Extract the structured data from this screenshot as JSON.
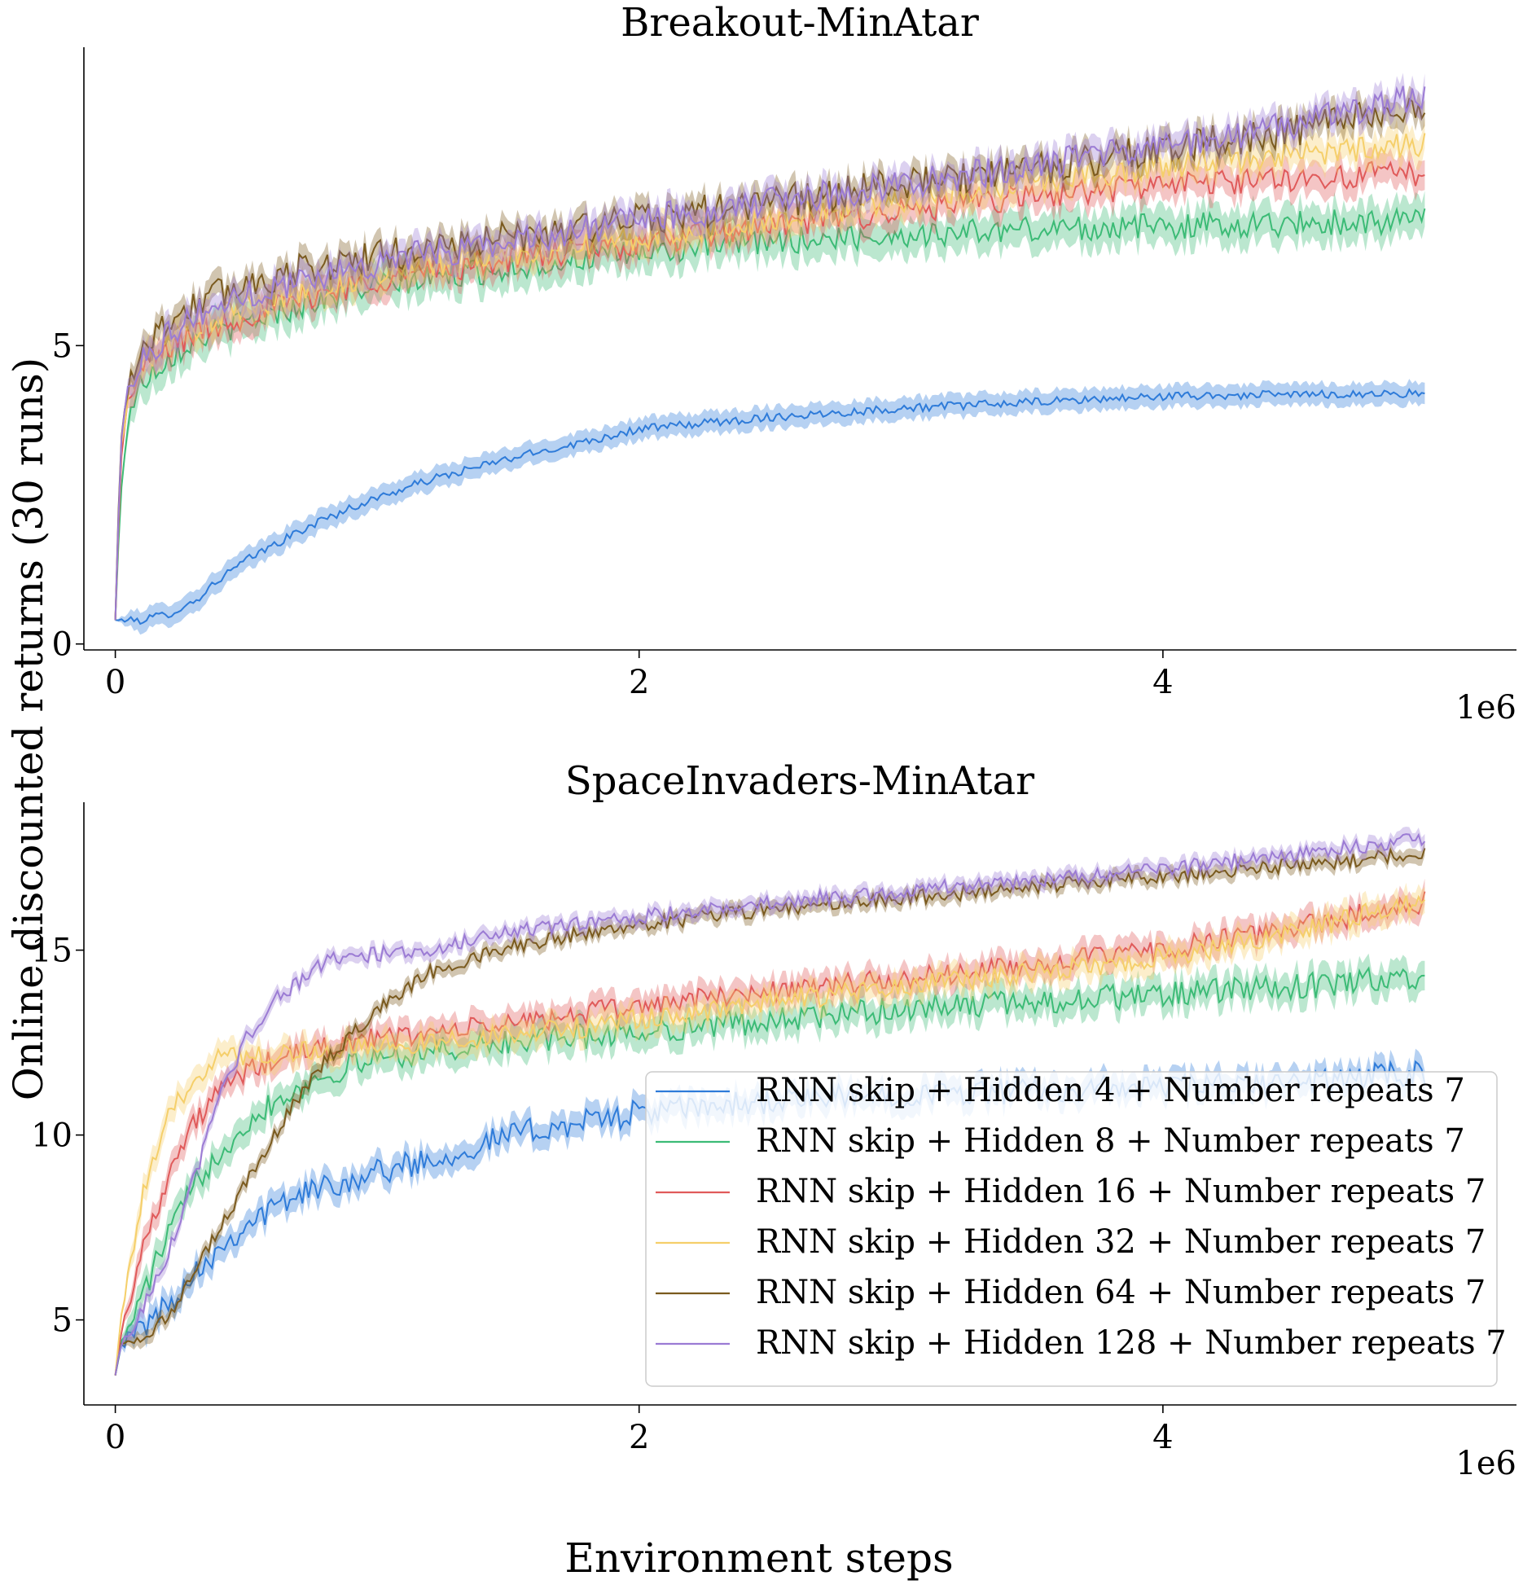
{
  "figure": {
    "ylabel": "Online discounted returns (30 runs)",
    "xlabel": "Environment steps"
  },
  "legend": {
    "placement": "lower-right of bottom panel",
    "entries": [
      {
        "label": "RNN skip + Hidden 4 + Number repeats 7",
        "color": "#2e7bd9"
      },
      {
        "label": "RNN skip + Hidden 8 + Number repeats 7",
        "color": "#3cbb76"
      },
      {
        "label": "RNN skip + Hidden 16 + Number repeats 7",
        "color": "#e05a5a"
      },
      {
        "label": "RNN skip + Hidden 32 + Number repeats 7",
        "color": "#f5cf6a"
      },
      {
        "label": "RNN skip + Hidden 64 + Number repeats 7",
        "color": "#7a5a1e"
      },
      {
        "label": "RNN skip + Hidden 128 + Number repeats 7",
        "color": "#9b7bd4"
      }
    ]
  },
  "chart_data": [
    {
      "type": "line",
      "title": "Breakout-MinAtar",
      "xlabel": "Environment steps",
      "ylabel": "Online discounted returns (30 runs)",
      "x_offset_label": "1e6",
      "x_unit_scale": 1000000,
      "xlim": [
        -0.12,
        5.35
      ],
      "ylim": [
        -0.1,
        10.0
      ],
      "xticks": [
        0,
        2,
        4
      ],
      "yticks": [
        0,
        5
      ],
      "grid": false,
      "shaded_band": true,
      "series": [
        {
          "name": "RNN skip + Hidden 4 + Number repeats 7",
          "color": "#2e7bd9",
          "x": [
            0,
            0.1,
            0.2,
            0.3,
            0.4,
            0.5,
            0.6,
            0.8,
            1.0,
            1.2,
            1.5,
            1.8,
            2.0,
            2.5,
            3.0,
            3.5,
            4.0,
            4.5,
            5.0
          ],
          "y": [
            0.4,
            0.4,
            0.5,
            0.7,
            1.1,
            1.4,
            1.65,
            2.1,
            2.45,
            2.75,
            3.1,
            3.4,
            3.6,
            3.8,
            3.95,
            4.05,
            4.15,
            4.18,
            4.2
          ],
          "band": 0.18,
          "noise": 0.07
        },
        {
          "name": "RNN skip + Hidden 8 + Number repeats 7",
          "color": "#3cbb76",
          "x": [
            0,
            0.02,
            0.05,
            0.1,
            0.2,
            0.3,
            0.5,
            0.8,
            1.0,
            1.5,
            2.0,
            2.5,
            3.0,
            3.5,
            4.0,
            4.5,
            5.0
          ],
          "y": [
            0.4,
            2.5,
            3.8,
            4.4,
            4.8,
            5.1,
            5.4,
            5.8,
            6.0,
            6.3,
            6.55,
            6.75,
            6.85,
            6.95,
            7.0,
            7.05,
            7.1
          ],
          "band": 0.3,
          "noise": 0.22
        },
        {
          "name": "RNN skip + Hidden 16 + Number repeats 7",
          "color": "#e05a5a",
          "x": [
            0,
            0.02,
            0.05,
            0.1,
            0.2,
            0.3,
            0.5,
            0.8,
            1.0,
            1.5,
            2.0,
            2.5,
            3.0,
            3.5,
            4.0,
            4.5,
            5.0
          ],
          "y": [
            0.4,
            3.0,
            4.1,
            4.6,
            4.95,
            5.2,
            5.5,
            5.9,
            6.1,
            6.45,
            6.7,
            7.0,
            7.25,
            7.5,
            7.7,
            7.8,
            7.9
          ],
          "band": 0.25,
          "noise": 0.22
        },
        {
          "name": "RNN skip + Hidden 32 + Number repeats 7",
          "color": "#f5cf6a",
          "x": [
            0,
            0.02,
            0.05,
            0.1,
            0.2,
            0.3,
            0.5,
            0.8,
            1.0,
            1.5,
            2.0,
            2.5,
            3.0,
            3.5,
            4.0,
            4.5,
            5.0
          ],
          "y": [
            0.4,
            3.2,
            4.2,
            4.7,
            5.05,
            5.3,
            5.65,
            6.0,
            6.2,
            6.55,
            6.8,
            7.1,
            7.45,
            7.75,
            8.0,
            8.2,
            8.4
          ],
          "band": 0.25,
          "noise": 0.22
        },
        {
          "name": "RNN skip + Hidden 64 + Number repeats 7",
          "color": "#7a5a1e",
          "x": [
            0,
            0.02,
            0.05,
            0.1,
            0.2,
            0.3,
            0.5,
            0.8,
            1.0,
            1.5,
            2.0,
            2.5,
            3.0,
            3.5,
            4.0,
            4.5,
            5.0
          ],
          "y": [
            0.4,
            3.4,
            4.4,
            4.95,
            5.4,
            5.7,
            6.05,
            6.35,
            6.5,
            6.8,
            7.1,
            7.4,
            7.7,
            7.95,
            8.3,
            8.6,
            9.0
          ],
          "band": 0.22,
          "noise": 0.28
        },
        {
          "name": "RNN skip + Hidden 128 + Number repeats 7",
          "color": "#9b7bd4",
          "x": [
            0,
            0.02,
            0.05,
            0.1,
            0.2,
            0.3,
            0.5,
            0.8,
            1.0,
            1.5,
            2.0,
            2.5,
            3.0,
            3.5,
            4.0,
            4.5,
            5.0
          ],
          "y": [
            0.4,
            3.3,
            4.3,
            4.8,
            5.2,
            5.5,
            5.85,
            6.2,
            6.4,
            6.75,
            7.1,
            7.4,
            7.7,
            8.0,
            8.35,
            8.7,
            9.2
          ],
          "band": 0.22,
          "noise": 0.25
        }
      ]
    },
    {
      "type": "line",
      "title": "SpaceInvaders-MinAtar",
      "xlabel": "Environment steps",
      "ylabel": "Online discounted returns (30 runs)",
      "x_offset_label": "1e6",
      "x_unit_scale": 1000000,
      "xlim": [
        -0.12,
        5.35
      ],
      "ylim": [
        2.7,
        19.0
      ],
      "xticks": [
        0,
        2,
        4
      ],
      "yticks": [
        5,
        10,
        15
      ],
      "grid": false,
      "shaded_band": true,
      "series": [
        {
          "name": "RNN skip + Hidden 4 + Number repeats 7",
          "color": "#2e7bd9",
          "x": [
            0,
            0.02,
            0.1,
            0.2,
            0.3,
            0.5,
            0.7,
            1.0,
            1.3,
            1.5,
            2.0,
            2.5,
            3.0,
            3.5,
            4.0,
            4.5,
            5.0
          ],
          "y": [
            3.5,
            4.3,
            4.8,
            5.4,
            6.3,
            7.6,
            8.4,
            9.0,
            9.5,
            10.0,
            10.6,
            10.9,
            11.1,
            11.2,
            11.3,
            11.4,
            11.7
          ],
          "band": 0.35,
          "noise": 0.35
        },
        {
          "name": "RNN skip + Hidden 8 + Number repeats 7",
          "color": "#3cbb76",
          "x": [
            0,
            0.02,
            0.1,
            0.2,
            0.3,
            0.4,
            0.5,
            0.6,
            0.8,
            1.0,
            1.5,
            2.0,
            2.5,
            3.0,
            3.5,
            4.0,
            4.5,
            5.0
          ],
          "y": [
            3.5,
            4.3,
            5.6,
            7.3,
            8.6,
            9.6,
            10.3,
            10.9,
            11.6,
            12.1,
            12.5,
            12.8,
            13.1,
            13.4,
            13.6,
            13.8,
            14.0,
            14.3
          ],
          "band": 0.4,
          "noise": 0.35
        },
        {
          "name": "RNN skip + Hidden 16 + Number repeats 7",
          "color": "#e05a5a",
          "x": [
            0,
            0.02,
            0.1,
            0.2,
            0.3,
            0.4,
            0.5,
            0.6,
            0.8,
            1.0,
            1.5,
            2.0,
            2.5,
            3.0,
            3.5,
            4.0,
            4.5,
            5.0
          ],
          "y": [
            3.5,
            4.6,
            6.8,
            8.9,
            10.3,
            11.2,
            11.7,
            12.0,
            12.4,
            12.6,
            13.0,
            13.5,
            13.9,
            14.2,
            14.6,
            15.0,
            15.6,
            16.3
          ],
          "band": 0.35,
          "noise": 0.3
        },
        {
          "name": "RNN skip + Hidden 32 + Number repeats 7",
          "color": "#f5cf6a",
          "x": [
            0,
            0.02,
            0.1,
            0.2,
            0.3,
            0.4,
            0.5,
            0.6,
            0.8,
            1.0,
            1.5,
            2.0,
            2.5,
            3.0,
            3.5,
            4.0,
            4.5,
            5.0
          ],
          "y": [
            3.5,
            5.0,
            8.2,
            10.4,
            11.6,
            12.1,
            12.2,
            12.2,
            12.3,
            12.4,
            12.7,
            13.1,
            13.6,
            14.0,
            14.4,
            14.8,
            15.5,
            16.4
          ],
          "band": 0.35,
          "noise": 0.3
        },
        {
          "name": "RNN skip + Hidden 64 + Number repeats 7",
          "color": "#7a5a1e",
          "x": [
            0,
            0.02,
            0.1,
            0.2,
            0.3,
            0.4,
            0.5,
            0.6,
            0.7,
            0.8,
            1.0,
            1.2,
            1.5,
            2.0,
            2.5,
            3.0,
            3.5,
            4.0,
            4.5,
            5.0
          ],
          "y": [
            3.5,
            4.3,
            4.6,
            5.0,
            6.2,
            7.5,
            8.7,
            9.9,
            11.0,
            12.0,
            13.4,
            14.4,
            15.1,
            15.7,
            16.1,
            16.4,
            16.7,
            17.0,
            17.3,
            17.6
          ],
          "band": 0.2,
          "noise": 0.2
        },
        {
          "name": "RNN skip + Hidden 128 + Number repeats 7",
          "color": "#9b7bd4",
          "x": [
            0,
            0.02,
            0.1,
            0.2,
            0.3,
            0.4,
            0.5,
            0.6,
            0.8,
            0.9,
            1.0,
            1.2,
            1.5,
            2.0,
            2.5,
            3.0,
            3.5,
            4.0,
            4.5,
            5.0
          ],
          "y": [
            3.5,
            4.3,
            5.2,
            6.8,
            8.8,
            11.0,
            12.6,
            13.6,
            14.7,
            14.8,
            14.9,
            15.0,
            15.5,
            15.9,
            16.3,
            16.6,
            16.9,
            17.2,
            17.6,
            18.0
          ],
          "band": 0.2,
          "noise": 0.2
        }
      ]
    }
  ]
}
